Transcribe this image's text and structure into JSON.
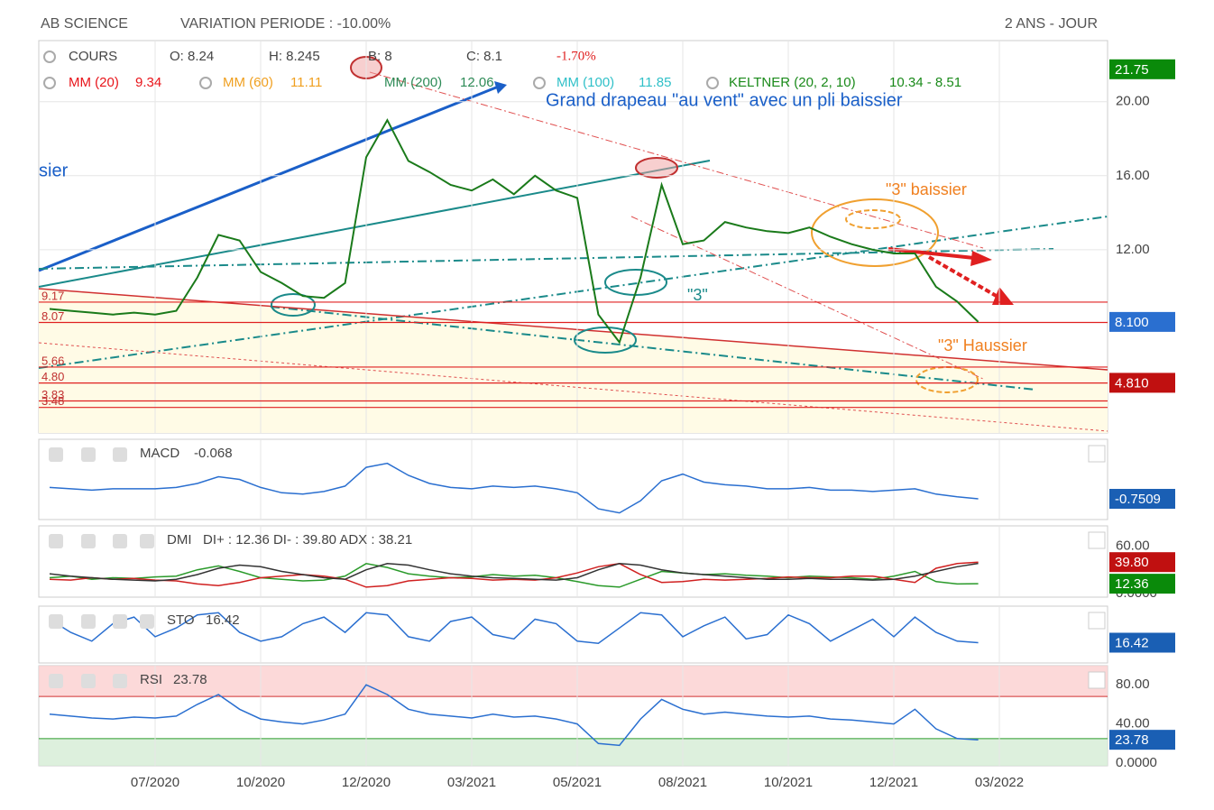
{
  "header": {
    "title": "AB SCIENCE",
    "variation": "VARIATION PERIODE : -10.00%",
    "period": "2 ANS - JOUR"
  },
  "chart_data": [
    {
      "type": "line",
      "info": [
        "O: 8.24",
        "H: 8.245",
        "B: 8",
        "C: 8.1",
        "-1.70%"
      ],
      "indicators": [
        {
          "name": "MM (20)",
          "value": 9.34,
          "color": "#e8141a"
        },
        {
          "name": "MM (60)",
          "value": 11.11,
          "color": "#f0a020"
        },
        {
          "name": "MM (200)",
          "value": 12.06,
          "color": "#2e8b57"
        },
        {
          "name": "MM (100)",
          "value": 11.85,
          "color": "#30c0c8"
        },
        {
          "name": "KELTNER (20, 2, 10)",
          "value": "10.34 - 8.51",
          "color": "#1a8a1a"
        }
      ],
      "annotations": [
        "Grand drapeau \"au vent\" avec un pli baissier",
        "\"3\" baissier",
        "\"3\" Haussier",
        "\"3\"",
        "sier"
      ],
      "categories": [
        null,
        null,
        null,
        null,
        null,
        "07/2020",
        null,
        null,
        null,
        null,
        "10/2020",
        null,
        null,
        null,
        null,
        "12/2020",
        null,
        null,
        null,
        null,
        "03/2021",
        null,
        null,
        null,
        null,
        "05/2021",
        null,
        null,
        null,
        null,
        "08/2021",
        null,
        null,
        null,
        null,
        "10/2021",
        null,
        null,
        null,
        null,
        "12/2021",
        null,
        null,
        null,
        null,
        "03/2022"
      ],
      "series": [
        {
          "name": "COURS",
          "color": "#1a7a1a",
          "values": [
            8.8,
            8.7,
            8.6,
            8.5,
            8.6,
            8.5,
            8.7,
            10.5,
            12.8,
            12.5,
            10.8,
            10.2,
            9.5,
            9.4,
            10.2,
            17.0,
            19.0,
            16.8,
            16.2,
            15.5,
            15.2,
            15.8,
            15.0,
            16.0,
            15.2,
            14.8,
            8.5,
            7.0,
            10.5,
            15.5,
            12.3,
            12.5,
            13.5,
            13.2,
            13.0,
            12.9,
            13.2,
            12.7,
            12.3,
            12.0,
            11.8,
            11.8,
            10.0,
            9.2,
            8.1,
            null
          ]
        }
      ],
      "ylim": [
        2.1,
        23.3
      ],
      "yticks": [
        {
          "value": 20,
          "label": "20.00"
        },
        {
          "value": 16,
          "label": "16.00"
        },
        {
          "value": 12,
          "label": "12.00"
        }
      ],
      "levels": [
        {
          "value": 9.17,
          "label": "9.17"
        },
        {
          "value": 8.07,
          "label": "8.07"
        },
        {
          "value": 5.66,
          "label": "5.66"
        },
        {
          "value": 4.8,
          "label": "4.80"
        },
        {
          "value": 3.83,
          "label": "3.83"
        },
        {
          "value": 3.48,
          "label": "3.48"
        }
      ],
      "tags": [
        {
          "value": 21.75,
          "label": "21.75",
          "color": "#0a8a0a"
        },
        {
          "value": 8.1,
          "label": "8.100",
          "color": "#2a6fd0"
        },
        {
          "value": 4.81,
          "label": "4.810",
          "color": "#c01010"
        }
      ],
      "grid": true
    },
    {
      "type": "line",
      "title": "MACD",
      "value": -0.068,
      "ylim": [
        -2.3,
        3.7
      ],
      "series": [
        {
          "color": "#2a6fd0",
          "values": [
            0.1,
            0.0,
            -0.1,
            0.0,
            0.0,
            0.0,
            0.1,
            0.4,
            0.9,
            0.7,
            0.1,
            -0.3,
            -0.4,
            -0.2,
            0.2,
            1.6,
            1.9,
            1.0,
            0.4,
            0.1,
            0.0,
            0.2,
            0.1,
            0.2,
            0.0,
            -0.3,
            -1.5,
            -1.8,
            -0.9,
            0.6,
            1.1,
            0.5,
            0.3,
            0.2,
            0.0,
            0.0,
            0.1,
            -0.1,
            -0.1,
            -0.2,
            -0.1,
            0.0,
            -0.4,
            -0.6,
            -0.75,
            null
          ]
        }
      ],
      "tags": [
        {
          "value": -0.7509,
          "color": "#1a5fb4"
        }
      ]
    },
    {
      "type": "line",
      "title": "DMI",
      "value": "DI+ : 12.36 DI- : 39.80 ADX : 38.21",
      "ylim": [
        -4.7,
        85.9
      ],
      "yticks": [
        {
          "value": 60,
          "label": "60.00"
        },
        {
          "value": 0,
          "label": "0.0000"
        }
      ],
      "series": [
        {
          "color": "#2a9a2a",
          "values": [
            20,
            22,
            18,
            20,
            19,
            21,
            22,
            30,
            35,
            28,
            20,
            18,
            16,
            17,
            22,
            38,
            33,
            25,
            22,
            20,
            21,
            24,
            22,
            23,
            20,
            15,
            10,
            8,
            18,
            28,
            26,
            24,
            25,
            23,
            22,
            20,
            22,
            21,
            20,
            18,
            22,
            28,
            15,
            12,
            12.36,
            null
          ]
        },
        {
          "color": "#d02020",
          "values": [
            18,
            17,
            20,
            18,
            19,
            17,
            16,
            12,
            10,
            14,
            20,
            22,
            24,
            22,
            18,
            8,
            10,
            16,
            18,
            20,
            19,
            17,
            18,
            17,
            20,
            26,
            34,
            38,
            24,
            14,
            15,
            18,
            17,
            18,
            19,
            21,
            20,
            20,
            22,
            22,
            18,
            14,
            32,
            38,
            39.8,
            null
          ]
        },
        {
          "color": "#333333",
          "values": [
            25,
            22,
            20,
            18,
            17,
            16,
            18,
            24,
            32,
            36,
            34,
            28,
            24,
            20,
            18,
            30,
            38,
            36,
            30,
            25,
            22,
            20,
            19,
            18,
            17,
            20,
            30,
            38,
            36,
            30,
            26,
            24,
            22,
            20,
            18,
            18,
            19,
            18,
            18,
            17,
            18,
            22,
            28,
            34,
            38.21,
            null
          ]
        }
      ],
      "tags": [
        {
          "value": 39.8,
          "label": "39.80",
          "color": "#c01010"
        },
        {
          "value": 12.36,
          "color": "#0a8a0a"
        }
      ]
    },
    {
      "type": "line",
      "title": "STO",
      "value": 16.42,
      "ylim": [
        -30,
        100
      ],
      "series": [
        {
          "color": "#2a6fd0",
          "values": [
            70,
            40,
            20,
            60,
            75,
            30,
            50,
            80,
            85,
            40,
            20,
            30,
            60,
            75,
            40,
            85,
            80,
            30,
            20,
            65,
            75,
            35,
            25,
            70,
            60,
            20,
            15,
            50,
            85,
            80,
            30,
            55,
            75,
            25,
            35,
            80,
            60,
            20,
            45,
            70,
            30,
            75,
            40,
            20,
            16.42,
            null
          ]
        }
      ],
      "tags": [
        {
          "value": 16.42,
          "color": "#1a5fb4"
        }
      ]
    },
    {
      "type": "line",
      "title": "RSI",
      "value": 23.78,
      "ylim": [
        -2.8,
        99.5
      ],
      "yticks": [
        {
          "value": 80,
          "label": "80.00"
        },
        {
          "value": 40,
          "label": "40.00"
        },
        {
          "value": 0,
          "label": "0.0000"
        }
      ],
      "overbought": 68,
      "oversold": 25,
      "series": [
        {
          "color": "#2a6fd0",
          "values": [
            50,
            48,
            46,
            45,
            47,
            46,
            48,
            60,
            70,
            55,
            45,
            42,
            40,
            44,
            50,
            80,
            70,
            55,
            50,
            48,
            46,
            50,
            47,
            48,
            45,
            40,
            20,
            18,
            45,
            65,
            55,
            50,
            52,
            50,
            48,
            47,
            48,
            45,
            44,
            42,
            40,
            55,
            35,
            25,
            23.78,
            null
          ]
        }
      ],
      "tags": [
        {
          "value": 23.78,
          "color": "#1a5fb4"
        }
      ]
    }
  ]
}
